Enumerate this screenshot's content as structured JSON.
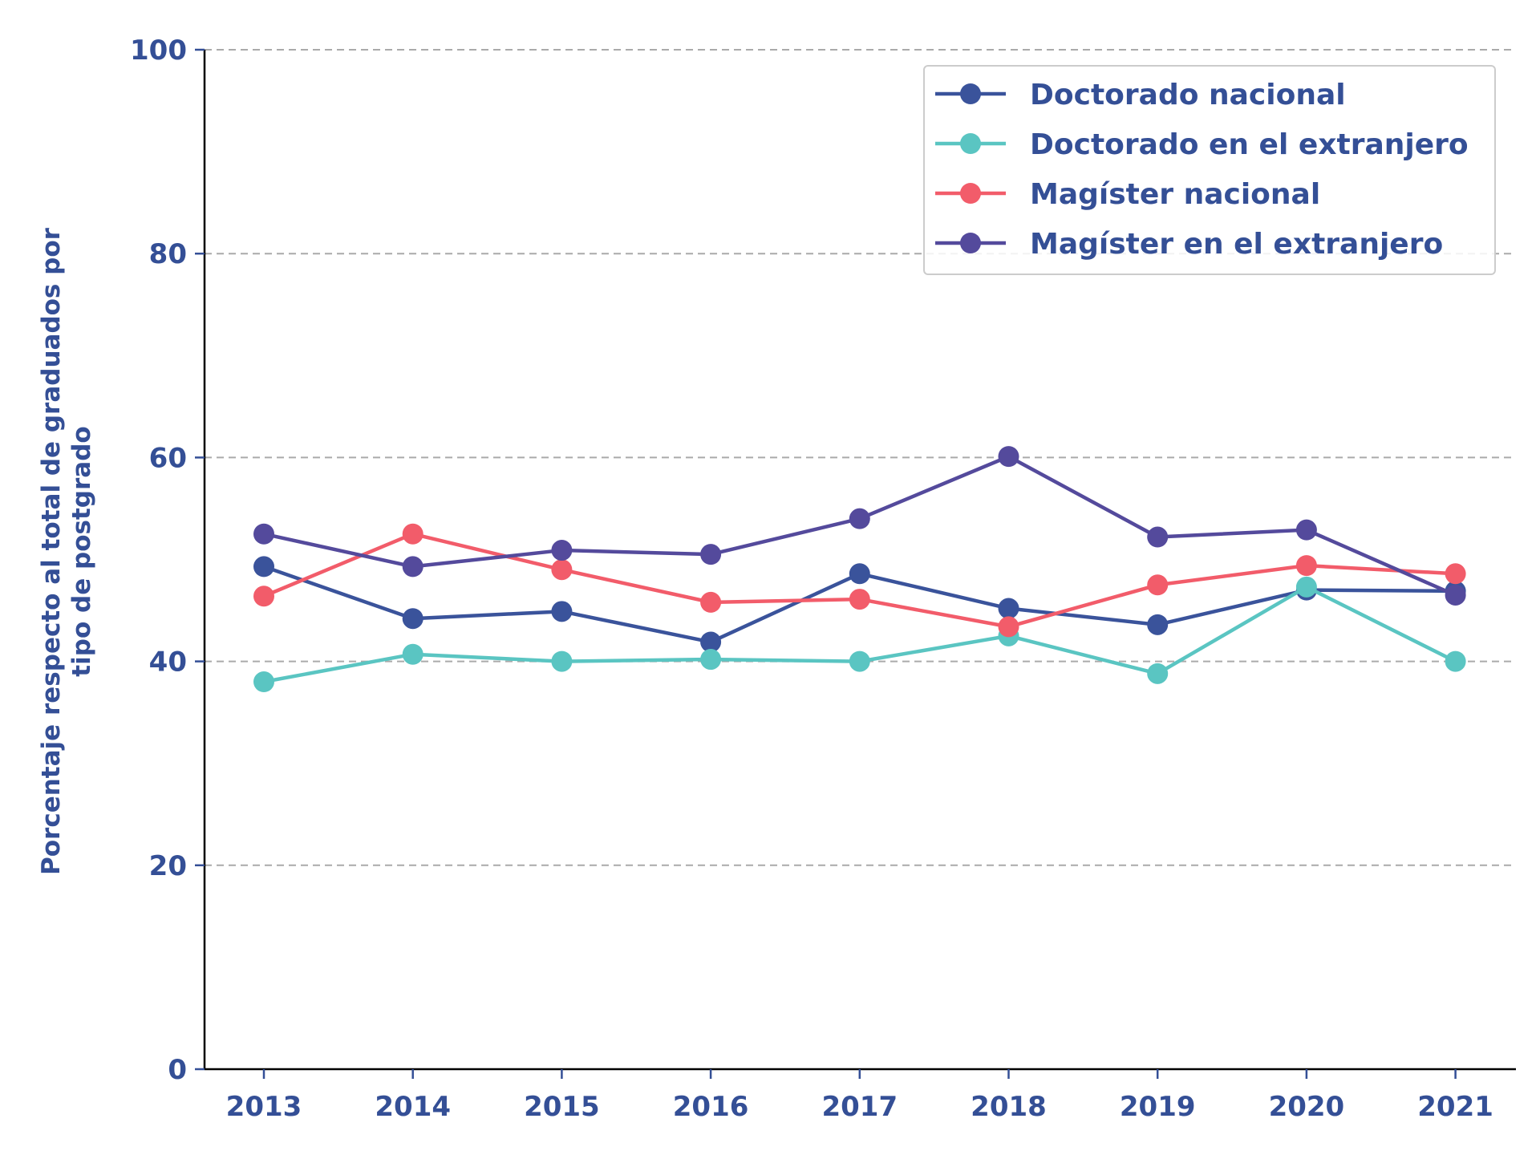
{
  "chart_data": {
    "type": "line",
    "title": "",
    "xlabel": "",
    "ylabel": "Porcentaje respecto al total de graduados por tipo de postgrado",
    "ylabel_lines": [
      "Porcentaje respecto al total de graduados por",
      "tipo de postgrado"
    ],
    "x": [
      "2013",
      "2014",
      "2015",
      "2016",
      "2017",
      "2018",
      "2019",
      "2020",
      "2021"
    ],
    "yticks": [
      "0",
      "20",
      "40",
      "60",
      "80",
      "100"
    ],
    "ylim": [
      0,
      100
    ],
    "grid": true,
    "legend_position": "top-right",
    "series": [
      {
        "name": "Doctorado nacional",
        "color": "#3a539b",
        "values": [
          49.3,
          44.2,
          44.9,
          41.9,
          48.6,
          45.2,
          43.6,
          47.0,
          46.9
        ]
      },
      {
        "name": "Doctorado en el extranjero",
        "color": "#5ac5c2",
        "values": [
          38.0,
          40.7,
          40.0,
          40.2,
          40.0,
          42.5,
          38.8,
          47.3,
          40.0
        ]
      },
      {
        "name": "Magíster nacional",
        "color": "#f25c6a",
        "values": [
          46.4,
          52.5,
          49.0,
          45.8,
          46.1,
          43.4,
          47.5,
          49.4,
          48.6
        ]
      },
      {
        "name": "Magíster en el extranjero",
        "color": "#544a9c",
        "values": [
          52.5,
          49.3,
          50.9,
          50.5,
          54.0,
          60.1,
          52.2,
          52.9,
          46.5
        ]
      }
    ]
  }
}
